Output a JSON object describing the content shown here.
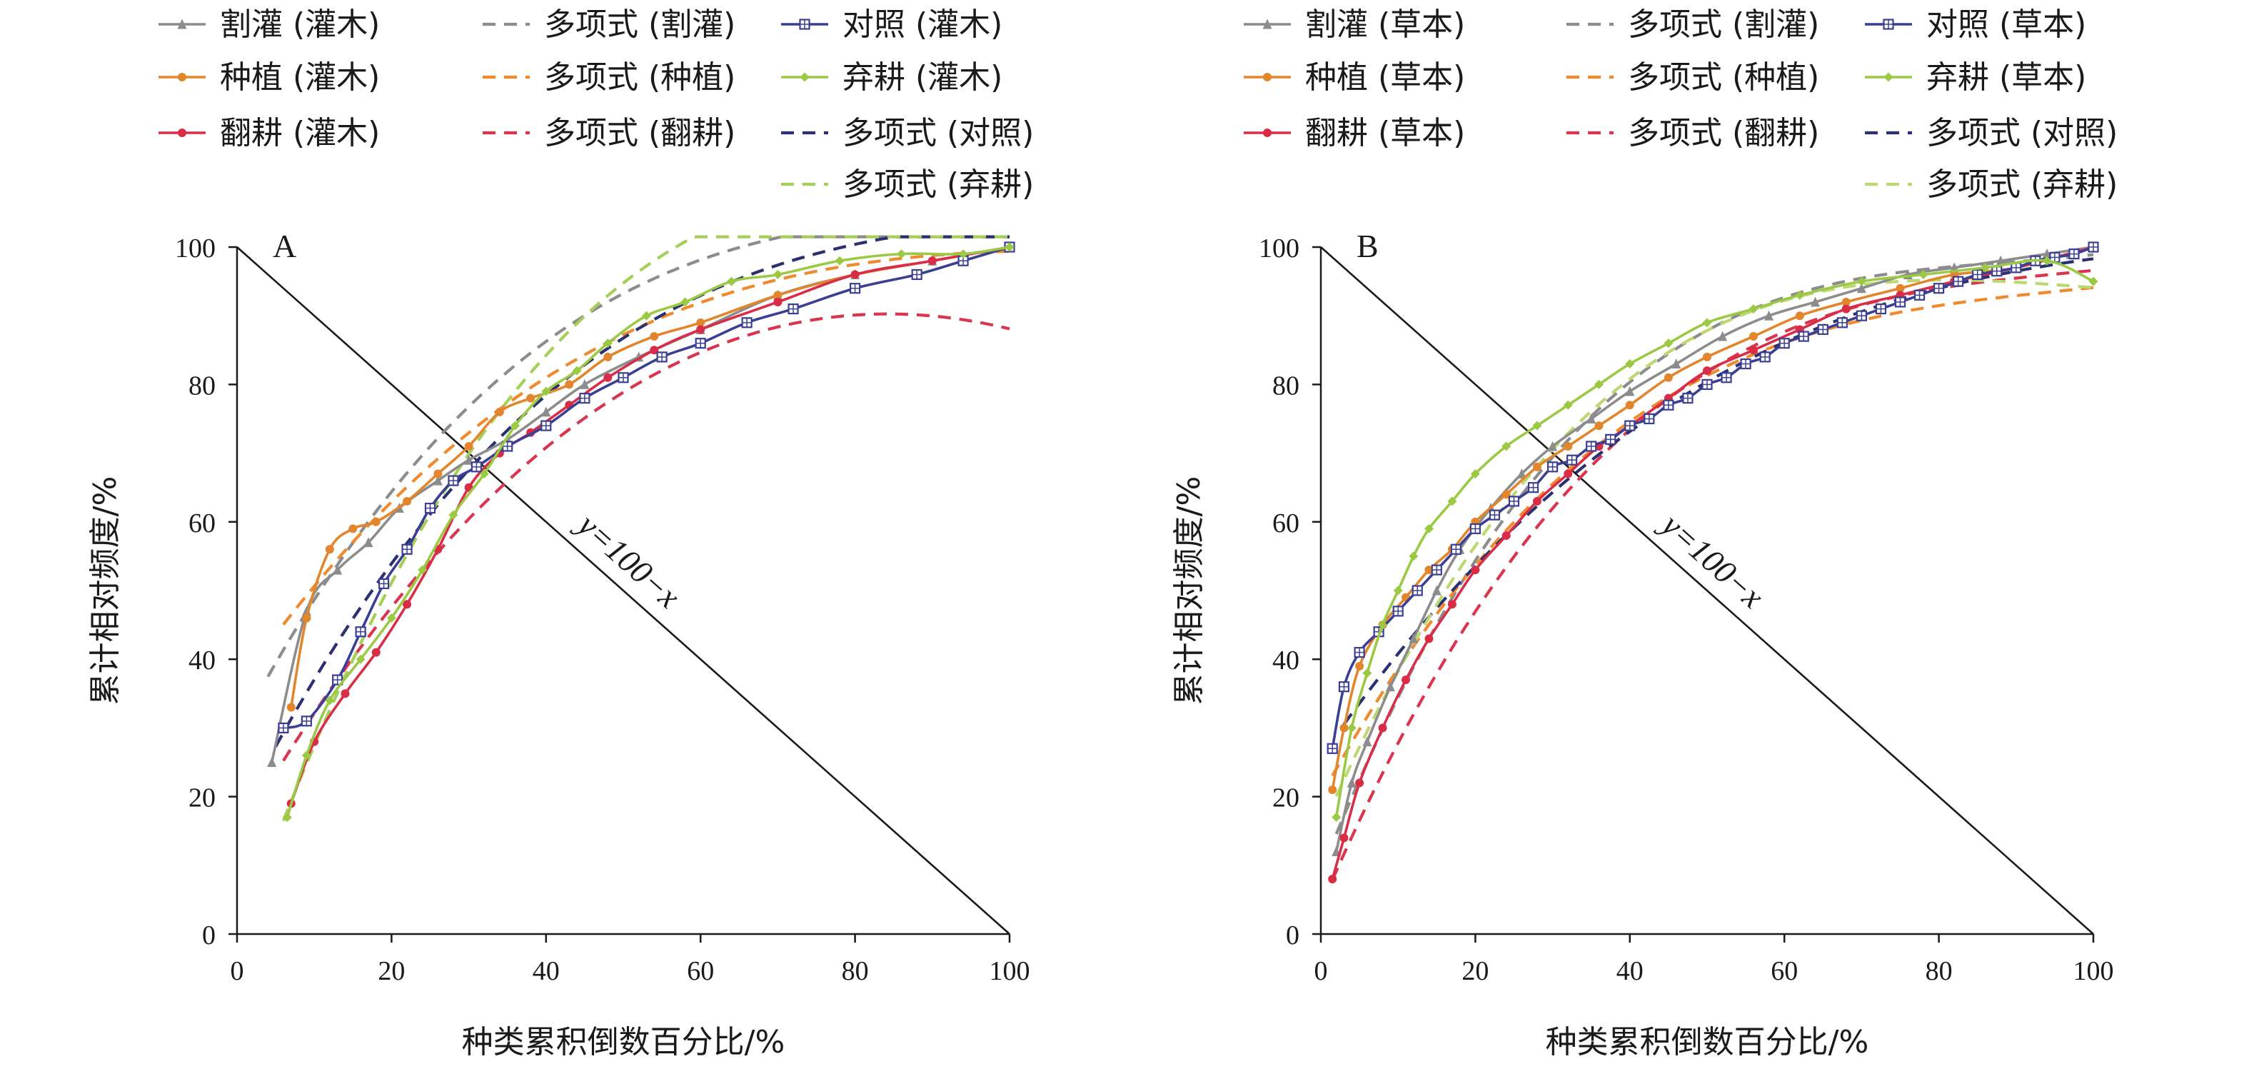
{
  "chart_data": [
    {
      "type": "line",
      "panel_label": "A",
      "xlabel": "种类累积倒数百分比/%",
      "ylabel": "累计相对频度/%",
      "xlim": [
        0,
        100
      ],
      "ylim": [
        0,
        100
      ],
      "x_ticks": [
        "0",
        "20",
        "40",
        "60",
        "80",
        "100"
      ],
      "y_ticks": [
        "0",
        "20",
        "40",
        "60",
        "80",
        "100"
      ],
      "grid": false,
      "legend_position": "top",
      "reference_line": {
        "label": "y=100−x",
        "x": [
          0,
          100
        ],
        "y": [
          100,
          0
        ]
      },
      "series": [
        {
          "name": "割灌 (灌木)",
          "kind": "observed",
          "marker": "triangle",
          "color": "#8c8c8c",
          "x": [
            4.5,
            9,
            13,
            17,
            21,
            26,
            30,
            35,
            40,
            45,
            52,
            60,
            70,
            80,
            90,
            100
          ],
          "y": [
            25,
            47,
            53,
            57,
            62,
            66,
            69,
            72,
            76,
            80,
            84,
            88,
            93,
            96,
            98,
            100
          ]
        },
        {
          "name": "种植 (灌木)",
          "kind": "observed",
          "marker": "circle",
          "color": "#e2862d",
          "x": [
            7,
            9,
            12,
            15,
            18,
            22,
            26,
            30,
            34,
            38,
            43,
            48,
            54,
            60,
            70,
            80,
            90,
            100
          ],
          "y": [
            33,
            46,
            56,
            59,
            60,
            63,
            67,
            71,
            76,
            78,
            80,
            84,
            87,
            89,
            93,
            96,
            98,
            100
          ]
        },
        {
          "name": "翻耕 (灌木)",
          "kind": "observed",
          "marker": "circle",
          "color": "#d92d47",
          "x": [
            7,
            10,
            14,
            18,
            22,
            26,
            30,
            34,
            38,
            43,
            48,
            54,
            60,
            70,
            80,
            90,
            100
          ],
          "y": [
            19,
            28,
            35,
            41,
            48,
            56,
            65,
            70,
            73,
            77,
            81,
            85,
            88,
            92,
            96,
            98,
            100
          ]
        },
        {
          "name": "对照 (灌木)",
          "kind": "observed",
          "marker": "square",
          "color": "#3a3f94",
          "x": [
            6,
            9,
            13,
            16,
            19,
            22,
            25,
            28,
            31,
            35,
            40,
            45,
            50,
            55,
            60,
            66,
            72,
            80,
            88,
            94,
            100
          ],
          "y": [
            30,
            31,
            37,
            44,
            51,
            56,
            62,
            66,
            68,
            71,
            74,
            78,
            81,
            84,
            86,
            89,
            91,
            94,
            96,
            98,
            100
          ]
        },
        {
          "name": "弃耕 (灌木)",
          "kind": "observed",
          "marker": "diamond",
          "color": "#9bc943",
          "x": [
            6.5,
            9,
            12,
            16,
            20,
            24,
            28,
            32,
            36,
            40,
            44,
            48,
            53,
            58,
            64,
            70,
            78,
            86,
            94,
            100
          ],
          "y": [
            17,
            26,
            34,
            40,
            46,
            53,
            61,
            67,
            74,
            79,
            82,
            86,
            90,
            92,
            95,
            96,
            98,
            99,
            99,
            100
          ]
        },
        {
          "name": "多项式 (割灌)",
          "kind": "fit",
          "color": "#8c8c8c",
          "poly": [
            29.2,
            2.147,
            -0.02078,
            6.91e-05
          ],
          "domain": [
            4,
            100
          ]
        },
        {
          "name": "多项式 (种植)",
          "kind": "fit",
          "color": "#f08a2e",
          "poly": [
            35.9,
            1.603,
            -0.01337,
            3.69e-05
          ],
          "domain": [
            6,
            100
          ]
        },
        {
          "name": "多项式 (翻耕)",
          "kind": "fit",
          "color": "#d9354f",
          "poly": [
            14.0,
            1.954,
            -0.01415,
            2.02e-05
          ],
          "domain": [
            6,
            100
          ]
        },
        {
          "name": "多项式 (对照)",
          "kind": "fit",
          "color": "#2b3070",
          "poly": [
            16.6,
            2.234,
            -0.0196,
            5.96e-05
          ],
          "domain": [
            5,
            100
          ]
        },
        {
          "name": "多项式 (弃耕)",
          "kind": "fit",
          "color": "#a6cf5a",
          "poly": [
            -1.7,
            3.207,
            -0.03008,
            9.05e-05
          ],
          "domain": [
            6,
            100
          ]
        }
      ]
    },
    {
      "type": "line",
      "panel_label": "B",
      "xlabel": "种类累积倒数百分比/%",
      "ylabel": "累计相对频度/%",
      "xlim": [
        0,
        100
      ],
      "ylim": [
        0,
        100
      ],
      "x_ticks": [
        "0",
        "20",
        "40",
        "60",
        "80",
        "100"
      ],
      "y_ticks": [
        "0",
        "20",
        "40",
        "60",
        "80",
        "100"
      ],
      "grid": false,
      "legend_position": "top",
      "reference_line": {
        "label": "y=100−x",
        "x": [
          0,
          100
        ],
        "y": [
          100,
          0
        ]
      },
      "series": [
        {
          "name": "割灌 (草本)",
          "kind": "observed",
          "marker": "triangle",
          "color": "#8c8c8c",
          "x": [
            2,
            4,
            6,
            9,
            12,
            15,
            18,
            22,
            26,
            30,
            35,
            40,
            46,
            52,
            58,
            64,
            70,
            76,
            82,
            88,
            94,
            100
          ],
          "y": [
            12,
            22,
            28,
            36,
            43,
            50,
            56,
            62,
            67,
            71,
            75,
            79,
            83,
            87,
            90,
            92,
            94,
            96,
            97,
            98,
            99,
            100
          ]
        },
        {
          "name": "种植 (草本)",
          "kind": "observed",
          "marker": "circle",
          "color": "#e2862d",
          "x": [
            1.5,
            3,
            5,
            8,
            11,
            14,
            17,
            20,
            24,
            28,
            32,
            36,
            40,
            45,
            50,
            56,
            62,
            68,
            75,
            82,
            90,
            100
          ],
          "y": [
            21,
            30,
            39,
            45,
            49,
            53,
            56,
            60,
            64,
            68,
            71,
            74,
            77,
            81,
            84,
            87,
            90,
            92,
            94,
            96,
            97,
            100
          ]
        },
        {
          "name": "翻耕 (草本)",
          "kind": "observed",
          "marker": "circle",
          "color": "#d92d47",
          "x": [
            1.5,
            3,
            5,
            8,
            11,
            14,
            17,
            20,
            24,
            28,
            32,
            36,
            40,
            45,
            50,
            56,
            62,
            68,
            75,
            82,
            90,
            100
          ],
          "y": [
            8,
            14,
            22,
            30,
            37,
            43,
            48,
            53,
            58,
            63,
            67,
            71,
            74,
            78,
            82,
            85,
            88,
            91,
            93,
            95,
            97,
            100
          ]
        },
        {
          "name": "对照 (草本)",
          "kind": "observed",
          "marker": "square",
          "color": "#3a3f94",
          "x": [
            1.5,
            3,
            5,
            7.5,
            10,
            12.5,
            15,
            17.5,
            20,
            22.5,
            25,
            27.5,
            30,
            32.5,
            35,
            37.5,
            40,
            42.5,
            45,
            47.5,
            50,
            52.5,
            55,
            57.5,
            60,
            62.5,
            65,
            67.5,
            70,
            72.5,
            75,
            77.5,
            80,
            82.5,
            85,
            87.5,
            90,
            92.5,
            95,
            97.5,
            100
          ],
          "y": [
            27,
            36,
            41,
            44,
            47,
            50,
            53,
            56,
            59,
            61,
            63,
            65,
            68,
            69,
            71,
            72,
            74,
            75,
            77,
            78,
            80,
            81,
            83,
            84,
            86,
            87,
            88,
            89,
            90,
            91,
            92,
            93,
            94,
            95,
            96,
            96.5,
            97,
            98,
            98.5,
            99,
            100
          ]
        },
        {
          "name": "弃耕 (草本)",
          "kind": "observed",
          "marker": "diamond",
          "color": "#9bc943",
          "x": [
            2,
            4,
            6,
            8,
            10,
            12,
            14,
            17,
            20,
            24,
            28,
            32,
            36,
            40,
            45,
            50,
            56,
            62,
            70,
            78,
            86,
            94,
            100
          ],
          "y": [
            17,
            30,
            38,
            45,
            50,
            55,
            59,
            63,
            67,
            71,
            74,
            77,
            80,
            83,
            86,
            89,
            91,
            93,
            95,
            96,
            97,
            98,
            95
          ]
        },
        {
          "name": "多项式 (割灌)",
          "kind": "fit",
          "color": "#8c8c8c",
          "poly": [
            9.0,
            2.845,
            -0.03125,
            0.0001179
          ],
          "domain": [
            2,
            100
          ]
        },
        {
          "name": "多项式 (种植)",
          "kind": "fit",
          "color": "#f08a2e",
          "poly": [
            20.0,
            2.057,
            -0.02008,
            6.92e-05
          ],
          "domain": [
            1.5,
            100
          ]
        },
        {
          "name": "多项式 (翻耕)",
          "kind": "fit",
          "color": "#d9354f",
          "poly": [
            4.0,
            2.63,
            -0.02592,
            8.88e-05
          ],
          "domain": [
            1.5,
            100
          ]
        },
        {
          "name": "多项式 (对照)",
          "kind": "fit",
          "color": "#2b3070",
          "poly": [
            25.8,
            1.618,
            -0.01213,
            3.2e-05
          ],
          "domain": [
            3,
            100
          ]
        },
        {
          "name": "多项式 (弃耕)",
          "kind": "fit",
          "color": "#bcd870",
          "poly": [
            15.0,
            2.58,
            -0.02703,
            9.14e-05
          ],
          "domain": [
            2,
            100
          ]
        }
      ]
    }
  ]
}
